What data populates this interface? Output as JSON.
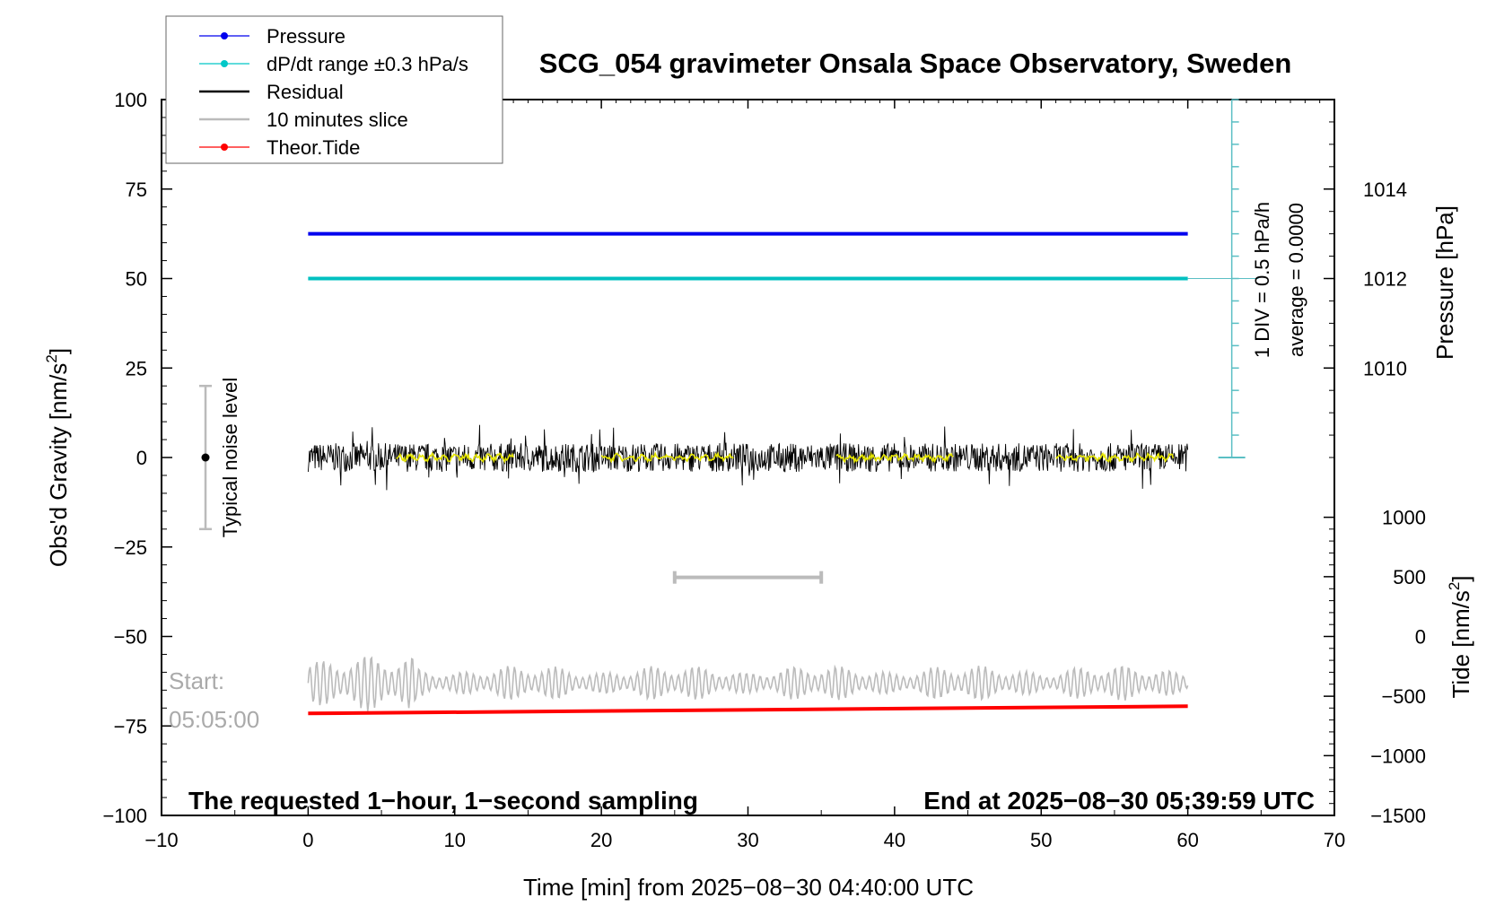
{
  "chart_data": {
    "type": "line",
    "title": "SCG_054 gravimeter Onsala Space Observatory, Sweden",
    "xlabel": "Time [min] from 2025−08−30 04:40:00 UTC",
    "ylabel": "Obs'd Gravity [nm/s",
    "ylabel_sup": "2",
    "ylabel_tail": "]",
    "y2label_pressure": "Pressure [hPa]",
    "y2label_tide": "Tide [nm/s",
    "y2label_tide_sup": "2",
    "y2label_tide_tail": "]",
    "xlim": [
      -10,
      70
    ],
    "ylim": [
      -100,
      100
    ],
    "x_ticks": [
      "−10",
      "0",
      "10",
      "20",
      "30",
      "40",
      "50",
      "60",
      "70"
    ],
    "x_tick_values": [
      -10,
      0,
      10,
      20,
      30,
      40,
      50,
      60,
      70
    ],
    "y_ticks": [
      "100",
      "75",
      "50",
      "25",
      "0",
      "−25",
      "−50",
      "−75",
      "−100"
    ],
    "y_tick_values": [
      100,
      75,
      50,
      25,
      0,
      -25,
      -50,
      -75,
      -100
    ],
    "pressure_axis": {
      "ticks": [
        "1014",
        "1012",
        "1010"
      ],
      "tick_values": [
        1014,
        1012,
        1010
      ],
      "gravity_equivalent": [
        75,
        50,
        25
      ]
    },
    "tide_axis": {
      "ticks": [
        "1000",
        "500",
        "0",
        "−500",
        "−1000",
        "−1500"
      ],
      "tick_values": [
        1000,
        500,
        0,
        -500,
        -1000,
        -1500
      ],
      "gravity_equivalent": [
        -16.7,
        -33.3,
        -50,
        -66.7,
        -83.3,
        -100
      ]
    },
    "legend": [
      {
        "label": "Pressure",
        "color": "#0000ee",
        "marker": true
      },
      {
        "label": "dP/dt range ±0.3 hPa/s",
        "color": "#00c8c8",
        "marker": true
      },
      {
        "label": "Residual",
        "color": "#000000",
        "marker": false
      },
      {
        "label": "10 minutes slice",
        "color": "#bbbbbb",
        "marker": false
      },
      {
        "label": "Theor.Tide",
        "color": "#ff0000",
        "marker": true
      }
    ],
    "legend_position": "top-left",
    "series": [
      {
        "name": "Pressure",
        "color": "#0000ee",
        "x": [
          0,
          60
        ],
        "y": [
          62.5,
          62.5
        ]
      },
      {
        "name": "dP/dt range ±0.3 hPa/s",
        "color": "#00c0c0",
        "x": [
          0,
          60
        ],
        "y": [
          50,
          50
        ]
      },
      {
        "name": "Residual",
        "color": "#000000",
        "x_range": [
          0,
          60
        ],
        "center": 0,
        "noise_amplitude": 4
      },
      {
        "name": "Residual smoothed",
        "color": "#e6e600",
        "x_segments": [
          [
            6,
            14
          ],
          [
            20,
            29
          ],
          [
            36,
            44
          ],
          [
            51,
            59
          ]
        ],
        "center": 0
      },
      {
        "name": "10 minutes slice",
        "color": "#bbbbbb",
        "x_range": [
          0,
          60
        ],
        "center": -63,
        "amplitude": 5
      },
      {
        "name": "Theor.Tide",
        "color": "#ff0000",
        "x": [
          0,
          60
        ],
        "y": [
          -71.5,
          -69.5
        ]
      }
    ],
    "noise_bar": {
      "x": -7,
      "y_range": [
        -20,
        20
      ],
      "center": 0,
      "label": "Typical noise level"
    },
    "slice_bar": {
      "x_range": [
        25,
        35
      ],
      "y": -33.5
    },
    "div_scale": {
      "x": 63,
      "y_range": [
        0,
        100
      ],
      "label": "1 DIV = 0.5 hPa/h",
      "average_label": "average = 0.0000"
    },
    "start_label": [
      "Start:",
      "05:05:00"
    ],
    "footer_left": "The requested 1−hour, 1−second sampling",
    "footer_right": "End at 2025−08−30 05:39:59 UTC"
  }
}
